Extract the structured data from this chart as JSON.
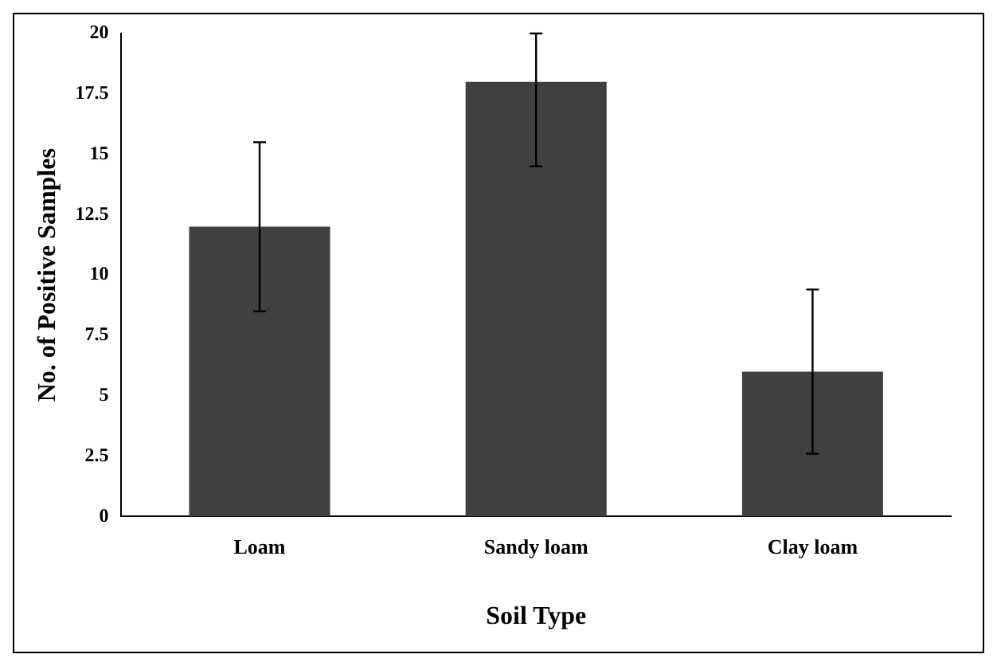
{
  "chart_data": {
    "type": "bar",
    "xlabel": "Soil Type",
    "ylabel": "No. of Positive Samples",
    "categories": [
      "Loam",
      "Sandy loam",
      "Clay loam"
    ],
    "values": [
      12,
      18,
      6
    ],
    "color": "#404040",
    "errors": [
      3.5,
      [
        14.5,
        20
      ],
      3.4
    ],
    "ylim": [
      0,
      20
    ],
    "yticks": [
      0,
      2.5,
      5,
      7.5,
      10,
      12.5,
      15,
      17.5,
      20
    ],
    "grid": false,
    "legend": false
  }
}
